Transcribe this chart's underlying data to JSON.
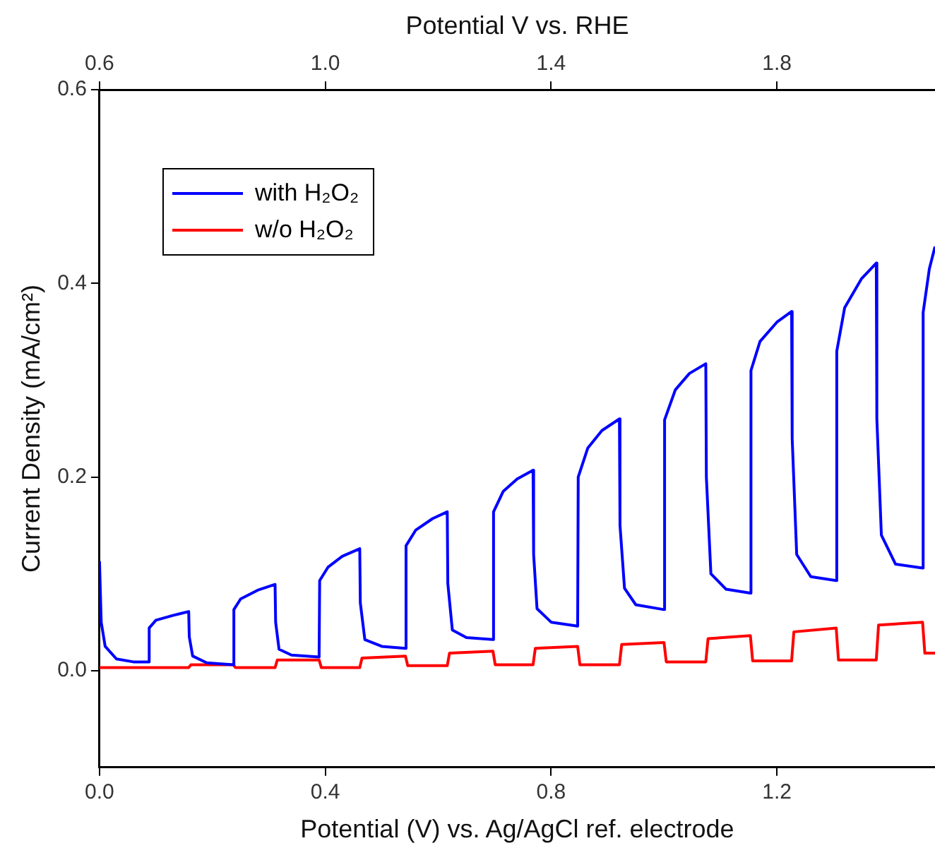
{
  "chart_data": {
    "type": "line",
    "xlabel": "Potential (V) vs. Ag/AgCl ref. electrode",
    "x2label": "Potential V vs. RHE",
    "ylabel": "Current Density (mA/cm²)",
    "xlim": [
      0,
      1.48
    ],
    "xticks": [
      {
        "value": 0,
        "label": "0.0"
      },
      0.4,
      0.8,
      1.2
    ],
    "x2lim": [
      0.6,
      2.08
    ],
    "x2ticks": [
      0.6,
      {
        "value": 1,
        "label": "1.0"
      },
      1.4,
      1.8
    ],
    "ylim": [
      -0.1,
      0.6
    ],
    "yticks": [
      {
        "value": 0,
        "label": "0.0"
      },
      0.2,
      0.4,
      0.6
    ],
    "grid": false,
    "legend": "top left",
    "marker": "none",
    "line_style": "solid",
    "series": [
      {
        "name": "with H₂O₂",
        "color": "#0000ff",
        "x": [
          0,
          0.003,
          0.01,
          0.03,
          0.06,
          0.087,
          0.088,
          0.1,
          0.13,
          0.158,
          0.159,
          0.165,
          0.19,
          0.237,
          0.238,
          0.25,
          0.28,
          0.311,
          0.312,
          0.318,
          0.34,
          0.389,
          0.39,
          0.405,
          0.43,
          0.461,
          0.462,
          0.47,
          0.5,
          0.542,
          0.543,
          0.56,
          0.59,
          0.616,
          0.617,
          0.625,
          0.65,
          0.697,
          0.698,
          0.715,
          0.74,
          0.768,
          0.769,
          0.775,
          0.8,
          0.847,
          0.848,
          0.865,
          0.89,
          0.921,
          0.922,
          0.93,
          0.95,
          1.0,
          1.001,
          1.02,
          1.045,
          1.074,
          1.075,
          1.083,
          1.11,
          1.153,
          1.154,
          1.17,
          1.2,
          1.226,
          1.227,
          1.235,
          1.26,
          1.305,
          1.306,
          1.32,
          1.35,
          1.376,
          1.377,
          1.385,
          1.41,
          1.458,
          1.459,
          1.47,
          1.48
        ],
        "values": [
          0.113,
          0.05,
          0.025,
          0.012,
          0.009,
          0.009,
          0.044,
          0.052,
          0.057,
          0.061,
          0.035,
          0.015,
          0.008,
          0.006,
          0.063,
          0.074,
          0.083,
          0.089,
          0.05,
          0.022,
          0.016,
          0.014,
          0.093,
          0.107,
          0.118,
          0.126,
          0.07,
          0.032,
          0.025,
          0.023,
          0.129,
          0.145,
          0.157,
          0.164,
          0.09,
          0.042,
          0.034,
          0.032,
          0.164,
          0.185,
          0.198,
          0.207,
          0.12,
          0.064,
          0.05,
          0.046,
          0.2,
          0.23,
          0.248,
          0.26,
          0.15,
          0.085,
          0.068,
          0.063,
          0.259,
          0.29,
          0.307,
          0.317,
          0.2,
          0.1,
          0.084,
          0.08,
          0.31,
          0.34,
          0.36,
          0.371,
          0.24,
          0.12,
          0.097,
          0.093,
          0.33,
          0.375,
          0.405,
          0.421,
          0.26,
          0.14,
          0.11,
          0.106,
          0.37,
          0.415,
          0.438
        ]
      },
      {
        "name": "w/o H₂O₂",
        "color": "#ff0000",
        "x": [
          0,
          0.158,
          0.162,
          0.237,
          0.241,
          0.311,
          0.315,
          0.389,
          0.393,
          0.461,
          0.465,
          0.542,
          0.546,
          0.616,
          0.62,
          0.697,
          0.701,
          0.768,
          0.772,
          0.847,
          0.851,
          0.921,
          0.925,
          1.0,
          1.004,
          1.074,
          1.078,
          1.153,
          1.157,
          1.226,
          1.23,
          1.305,
          1.309,
          1.376,
          1.38,
          1.458,
          1.462,
          1.48
        ],
        "values": [
          0.003,
          0.003,
          0.006,
          0.006,
          0.003,
          0.003,
          0.011,
          0.011,
          0.003,
          0.003,
          0.013,
          0.015,
          0.005,
          0.005,
          0.018,
          0.02,
          0.006,
          0.006,
          0.023,
          0.025,
          0.006,
          0.006,
          0.027,
          0.029,
          0.009,
          0.009,
          0.033,
          0.036,
          0.01,
          0.01,
          0.04,
          0.044,
          0.011,
          0.011,
          0.047,
          0.05,
          0.018,
          0.018
        ]
      }
    ]
  }
}
